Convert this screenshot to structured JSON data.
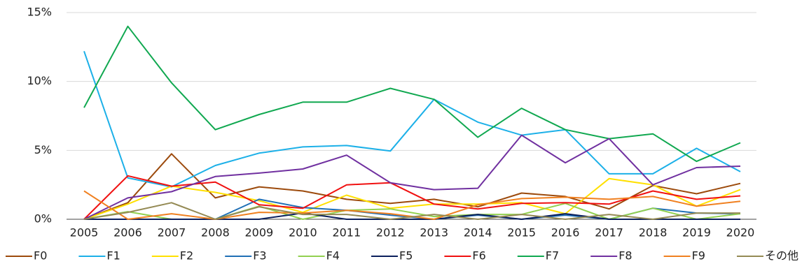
{
  "chart_data": {
    "type": "line",
    "x": [
      2005,
      2006,
      2007,
      2008,
      2009,
      2010,
      2011,
      2012,
      2013,
      2014,
      2015,
      2016,
      2017,
      2018,
      2019,
      2020
    ],
    "xticks": [
      2005,
      2006,
      2007,
      2008,
      2009,
      2010,
      2011,
      2012,
      2013,
      2014,
      2015,
      2016,
      2017,
      2018,
      2019,
      2020
    ],
    "xlim": [
      2005,
      2020
    ],
    "ylim": [
      0,
      15
    ],
    "yticks": [
      {
        "value": 0,
        "label": "0%"
      },
      {
        "value": 5,
        "label": "5%"
      },
      {
        "value": 10,
        "label": "10%"
      },
      {
        "value": 15,
        "label": "15%"
      }
    ],
    "grid": true,
    "legend": "bottom",
    "series": [
      {
        "name": "F0",
        "color": "#9c4a0c",
        "values": [
          0,
          1.2,
          4.75,
          1.55,
          2.35,
          2.05,
          1.45,
          1.15,
          1.45,
          0.9,
          1.9,
          1.65,
          0.75,
          2.45,
          1.85,
          2.6
        ]
      },
      {
        "name": "F1",
        "color": "#1cb0e8",
        "values": [
          12.2,
          3.0,
          2.35,
          3.9,
          4.8,
          5.25,
          5.35,
          4.95,
          8.7,
          7.05,
          6.1,
          6.5,
          3.3,
          3.3,
          5.15,
          3.45
        ]
      },
      {
        "name": "F2",
        "color": "#ffe000",
        "values": [
          0,
          1.1,
          2.4,
          1.95,
          1.35,
          0.5,
          1.75,
          0.8,
          1.1,
          1.1,
          1.2,
          0.4,
          2.95,
          2.5,
          0.95,
          2.15
        ]
      },
      {
        "name": "F3",
        "color": "#1f6fb5",
        "values": [
          0,
          0,
          0,
          0,
          1.45,
          0.85,
          0.65,
          0.3,
          0,
          0.3,
          0,
          0.3,
          0,
          0.8,
          0.45,
          0.4
        ]
      },
      {
        "name": "F4",
        "color": "#92d050",
        "values": [
          0,
          0.55,
          0,
          0,
          0.95,
          0,
          0.65,
          0.75,
          0.2,
          0.35,
          0.35,
          1.15,
          0,
          0.8,
          0,
          0.4
        ]
      },
      {
        "name": "F5",
        "color": "#0b1f5c",
        "values": [
          0,
          0,
          0,
          0,
          0,
          0.45,
          0,
          0,
          0,
          0.35,
          0,
          0.4,
          0,
          0,
          0,
          0
        ]
      },
      {
        "name": "F6",
        "color": "#f01010",
        "values": [
          0,
          3.15,
          2.4,
          2.7,
          1.05,
          0.8,
          2.5,
          2.65,
          1.1,
          0.75,
          1.15,
          1.2,
          1.1,
          2.05,
          1.45,
          1.7
        ]
      },
      {
        "name": "F7",
        "color": "#10a850",
        "values": [
          8.1,
          14.0,
          9.9,
          6.5,
          7.6,
          8.5,
          8.5,
          9.5,
          8.7,
          5.95,
          8.05,
          6.5,
          5.85,
          6.2,
          4.2,
          5.55
        ]
      },
      {
        "name": "F8",
        "color": "#7030a0",
        "values": [
          0,
          1.55,
          2.0,
          3.1,
          3.35,
          3.65,
          4.65,
          2.65,
          2.15,
          2.25,
          6.1,
          4.1,
          5.85,
          2.5,
          3.75,
          3.85
        ]
      },
      {
        "name": "F9",
        "color": "#f08020",
        "values": [
          2.05,
          0,
          0.4,
          0,
          0.5,
          0.45,
          0.65,
          0.4,
          0,
          1.05,
          1.5,
          1.6,
          1.45,
          1.65,
          0.95,
          1.3
        ]
      },
      {
        "name": "その他",
        "color": "#948a54",
        "values": [
          0,
          0.5,
          1.2,
          0,
          0.9,
          0.35,
          0.35,
          0,
          0.35,
          0,
          0.35,
          0,
          0.35,
          0,
          0.45,
          0.45
        ]
      }
    ]
  }
}
